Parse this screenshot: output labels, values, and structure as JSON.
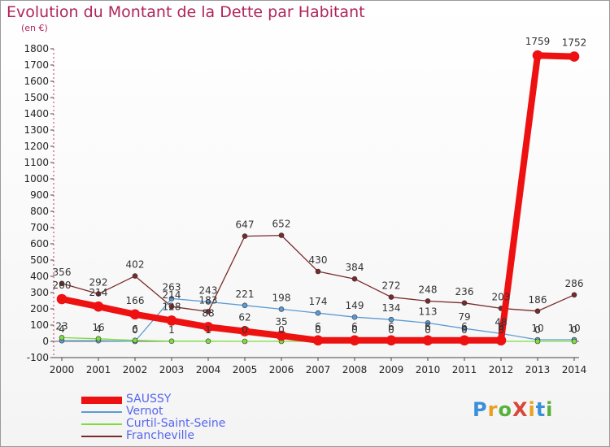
{
  "title": "Evolution du Montant de la Dette par Habitant",
  "unit_label": "(en €)",
  "logo": {
    "text": "ProXiti",
    "letter_colors": [
      "#3a8fd9",
      "#e8a020",
      "#57b13a",
      "#d9463a",
      "#e8a020",
      "#3a8fd9",
      "#57b13a"
    ]
  },
  "chart_data": {
    "type": "line",
    "title": "Evolution du Montant de la Dette par Habitant",
    "ylabel": "(en €)",
    "xlabel": "",
    "x": [
      "2000",
      "2001",
      "2002",
      "2003",
      "2004",
      "2005",
      "2006",
      "2007",
      "2008",
      "2009",
      "2010",
      "2011",
      "2012",
      "2013",
      "2014"
    ],
    "ylim": [
      -100,
      1800
    ],
    "yticks": [
      -100,
      0,
      100,
      200,
      300,
      400,
      500,
      600,
      700,
      800,
      900,
      1000,
      1100,
      1200,
      1300,
      1400,
      1500,
      1600,
      1700,
      1800
    ],
    "grid": false,
    "legend_position": "bottom-left",
    "series": [
      {
        "name": "Francheville",
        "color": "#7a2a2a",
        "values": [
          356,
          292,
          402,
          214,
          183,
          647,
          652,
          430,
          384,
          272,
          248,
          236,
          203,
          186,
          286
        ]
      },
      {
        "name": "Vernot",
        "color": "#5b9bd5",
        "values": [
          4,
          4,
          0,
          263,
          243,
          221,
          198,
          174,
          149,
          134,
          113,
          79,
          48,
          10,
          10
        ]
      },
      {
        "name": "Curtil-Saint-Seine",
        "color": "#7edc3c",
        "values": [
          23,
          16,
          6,
          1,
          1,
          0,
          0,
          0,
          0,
          0,
          0,
          0,
          0,
          0,
          0
        ]
      },
      {
        "name": "SAUSSY",
        "color": "#ee1111",
        "values": [
          260,
          214,
          166,
          128,
          88,
          62,
          35,
          6,
          6,
          6,
          6,
          6,
          6,
          1759,
          1752
        ]
      }
    ]
  }
}
